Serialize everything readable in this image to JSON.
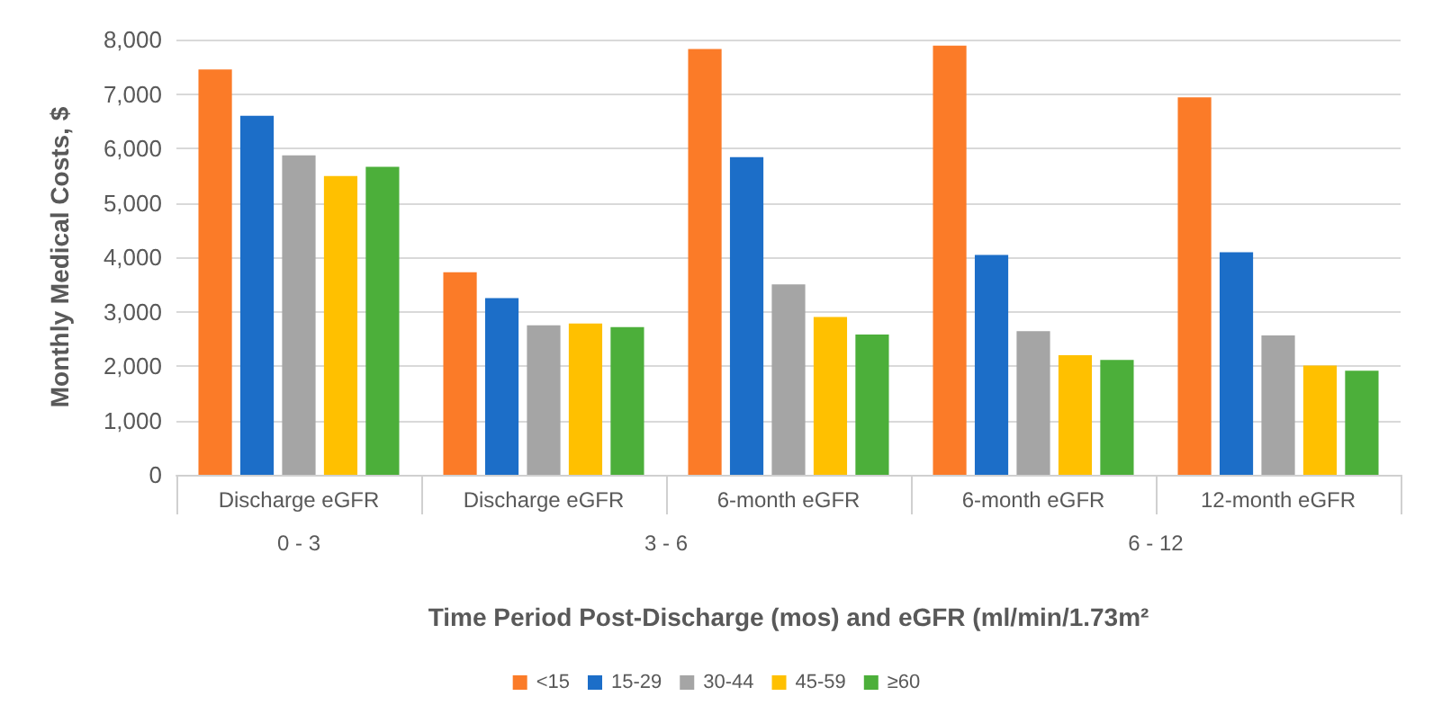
{
  "chart_data": {
    "type": "bar",
    "xlabel": "Time Period Post-Discharge (mos) and eGFR (ml/min/1.73m²",
    "ylabel": "Monthly Medical Costs, $",
    "categories": [
      "Discharge eGFR",
      "Discharge eGFR",
      "6-month eGFR",
      "6-month eGFR",
      "12-month eGFR"
    ],
    "annotations": [
      "0 - 3",
      "3 - 6",
      "6 - 12"
    ],
    "series": [
      {
        "name": "<15",
        "color": "#fb7b28",
        "values": [
          7450,
          3725,
          7825,
          7890,
          6940
        ]
      },
      {
        "name": "15-29",
        "color": "#1c6ec8",
        "values": [
          6600,
          3250,
          5840,
          4040,
          4090
        ]
      },
      {
        "name": "30-44",
        "color": "#a5a5a5",
        "values": [
          5870,
          2750,
          3500,
          2640,
          2560
        ]
      },
      {
        "name": "45-59",
        "color": "#ffc000",
        "values": [
          5490,
          2780,
          2900,
          2200,
          2010
        ]
      },
      {
        "name": "≥60",
        "color": "#4caf3a",
        "values": [
          5660,
          2715,
          2580,
          2110,
          1915
        ]
      }
    ],
    "ylim": [
      0,
      8000
    ],
    "yticks": [
      0,
      {
        "value": 1000,
        "label": "1,000"
      },
      {
        "value": 2000,
        "label": "2,000"
      },
      {
        "value": 3000,
        "label": "3,000"
      },
      {
        "value": 4000,
        "label": "4,000"
      },
      {
        "value": 5000,
        "label": "5,000"
      },
      {
        "value": 6000,
        "label": "6,000"
      },
      {
        "value": 7000,
        "label": "7,000"
      },
      {
        "value": 8000,
        "label": "8,000"
      }
    ],
    "grid": "y",
    "legend": "bottom"
  }
}
